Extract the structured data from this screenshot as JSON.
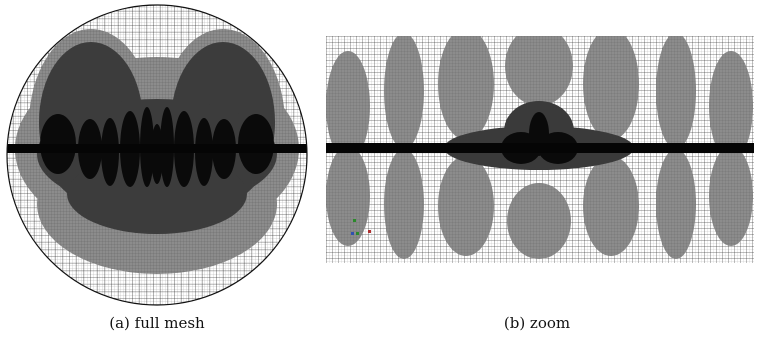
{
  "figure": {
    "panels": [
      {
        "id": "a",
        "caption": "(a) full mesh"
      },
      {
        "id": "b",
        "caption": "(b) zoom"
      }
    ]
  },
  "colors": {
    "background": "#ffffff",
    "mesh_line": "#222222",
    "medium_refinement": "#8c8c8c",
    "fine_refinement": "#3a3a3a",
    "core": "#0a0a0a"
  }
}
